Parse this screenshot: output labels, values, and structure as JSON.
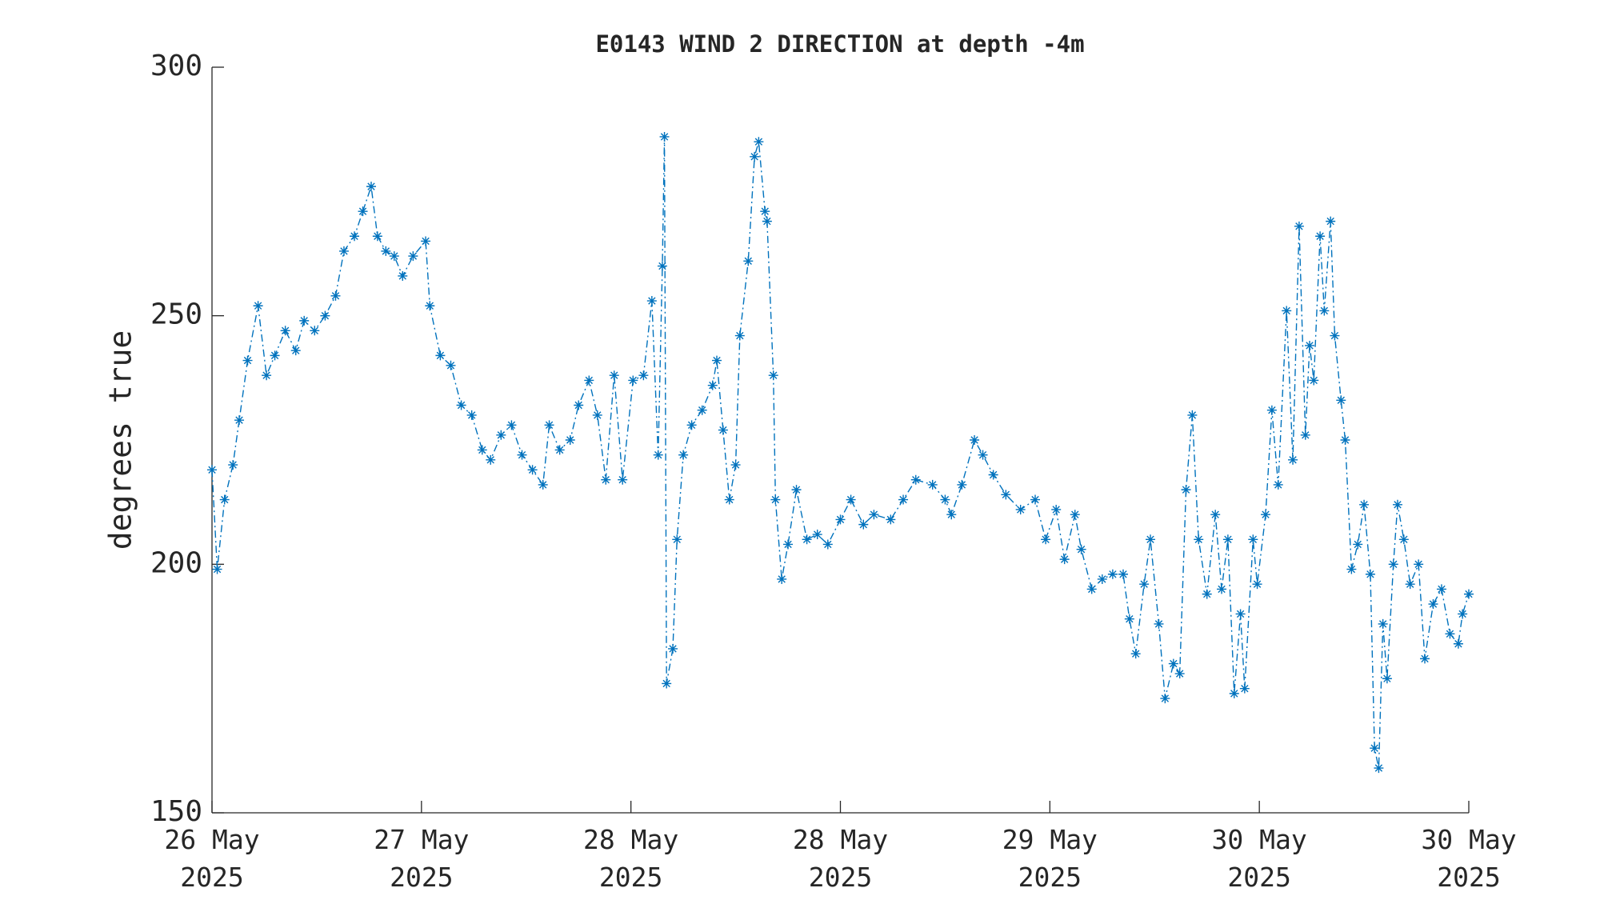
{
  "chart_data": {
    "type": "line",
    "title": "E0143 WIND 2 DIRECTION at depth -4m",
    "y_label": "degrees true",
    "xlim": [
      0,
      6
    ],
    "xticks": [
      {
        "value": 0,
        "label": "26 May\n2025"
      },
      {
        "value": 1,
        "label": "27 May\n2025"
      },
      {
        "value": 2,
        "label": "28 May\n2025"
      },
      {
        "value": 3,
        "label": "28 May\n2025"
      },
      {
        "value": 4,
        "label": "29 May\n2025"
      },
      {
        "value": 5,
        "label": "30 May\n2025"
      },
      {
        "value": 6,
        "label": "30 May\n2025"
      }
    ],
    "ylim": [
      150,
      300
    ],
    "yticks": [
      150,
      200,
      250,
      300
    ],
    "grid": false,
    "series": [
      {
        "color": "#0072bd",
        "x": [
          0.0,
          0.025,
          0.06,
          0.1,
          0.13,
          0.17,
          0.22,
          0.26,
          0.3,
          0.35,
          0.4,
          0.44,
          0.49,
          0.54,
          0.59,
          0.63,
          0.68,
          0.72,
          0.76,
          0.79,
          0.83,
          0.87,
          0.91,
          0.96,
          1.02,
          1.04,
          1.09,
          1.14,
          1.19,
          1.24,
          1.29,
          1.33,
          1.38,
          1.43,
          1.48,
          1.53,
          1.58,
          1.61,
          1.66,
          1.71,
          1.75,
          1.8,
          1.84,
          1.88,
          1.92,
          1.96,
          2.01,
          2.06,
          2.1,
          2.13,
          2.15,
          2.16,
          2.17,
          2.2,
          2.22,
          2.25,
          2.29,
          2.34,
          2.39,
          2.41,
          2.44,
          2.47,
          2.5,
          2.52,
          2.56,
          2.59,
          2.61,
          2.64,
          2.65,
          2.68,
          2.69,
          2.72,
          2.75,
          2.79,
          2.84,
          2.89,
          2.94,
          3.0,
          3.05,
          3.11,
          3.16,
          3.24,
          3.3,
          3.36,
          3.44,
          3.5,
          3.53,
          3.58,
          3.64,
          3.68,
          3.73,
          3.79,
          3.86,
          3.93,
          3.98,
          4.03,
          4.07,
          4.12,
          4.15,
          4.2,
          4.25,
          4.3,
          4.35,
          4.38,
          4.41,
          4.45,
          4.48,
          4.52,
          4.55,
          4.59,
          4.62,
          4.65,
          4.68,
          4.71,
          4.75,
          4.79,
          4.82,
          4.85,
          4.88,
          4.91,
          4.93,
          4.97,
          4.99,
          5.03,
          5.06,
          5.09,
          5.13,
          5.16,
          5.19,
          5.22,
          5.24,
          5.26,
          5.29,
          5.31,
          5.34,
          5.36,
          5.39,
          5.41,
          5.44,
          5.47,
          5.5,
          5.53,
          5.55,
          5.57,
          5.59,
          5.61,
          5.64,
          5.66,
          5.69,
          5.72,
          5.76,
          5.79,
          5.83,
          5.87,
          5.91,
          5.95,
          5.97,
          6.0
        ],
        "values": [
          219,
          199,
          213,
          220,
          229,
          241,
          252,
          238,
          242,
          247,
          243,
          249,
          247,
          250,
          254,
          263,
          266,
          271,
          276,
          266,
          263,
          262,
          258,
          262,
          265,
          252,
          242,
          240,
          232,
          230,
          223,
          221,
          226,
          228,
          222,
          219,
          216,
          228,
          223,
          225,
          232,
          237,
          230,
          217,
          238,
          217,
          237,
          238,
          253,
          222,
          260,
          286,
          176,
          183,
          205,
          222,
          228,
          231,
          236,
          241,
          227,
          213,
          220,
          246,
          261,
          282,
          285,
          271,
          269,
          238,
          213,
          197,
          204,
          215,
          205,
          206,
          204,
          209,
          213,
          208,
          210,
          209,
          213,
          217,
          216,
          213,
          210,
          216,
          225,
          222,
          218,
          214,
          211,
          213,
          205,
          211,
          201,
          210,
          203,
          195,
          197,
          198,
          198,
          189,
          182,
          196,
          205,
          188,
          173,
          180,
          178,
          215,
          230,
          205,
          194,
          210,
          195,
          205,
          174,
          190,
          175,
          205,
          196,
          210,
          231,
          216,
          251,
          221,
          268,
          226,
          244,
          237,
          266,
          251,
          269,
          246,
          233,
          225,
          199,
          204,
          212,
          198,
          163,
          159,
          188,
          177,
          200,
          212,
          205,
          196,
          200,
          181,
          192,
          195,
          186,
          184,
          190,
          194
        ]
      }
    ]
  }
}
